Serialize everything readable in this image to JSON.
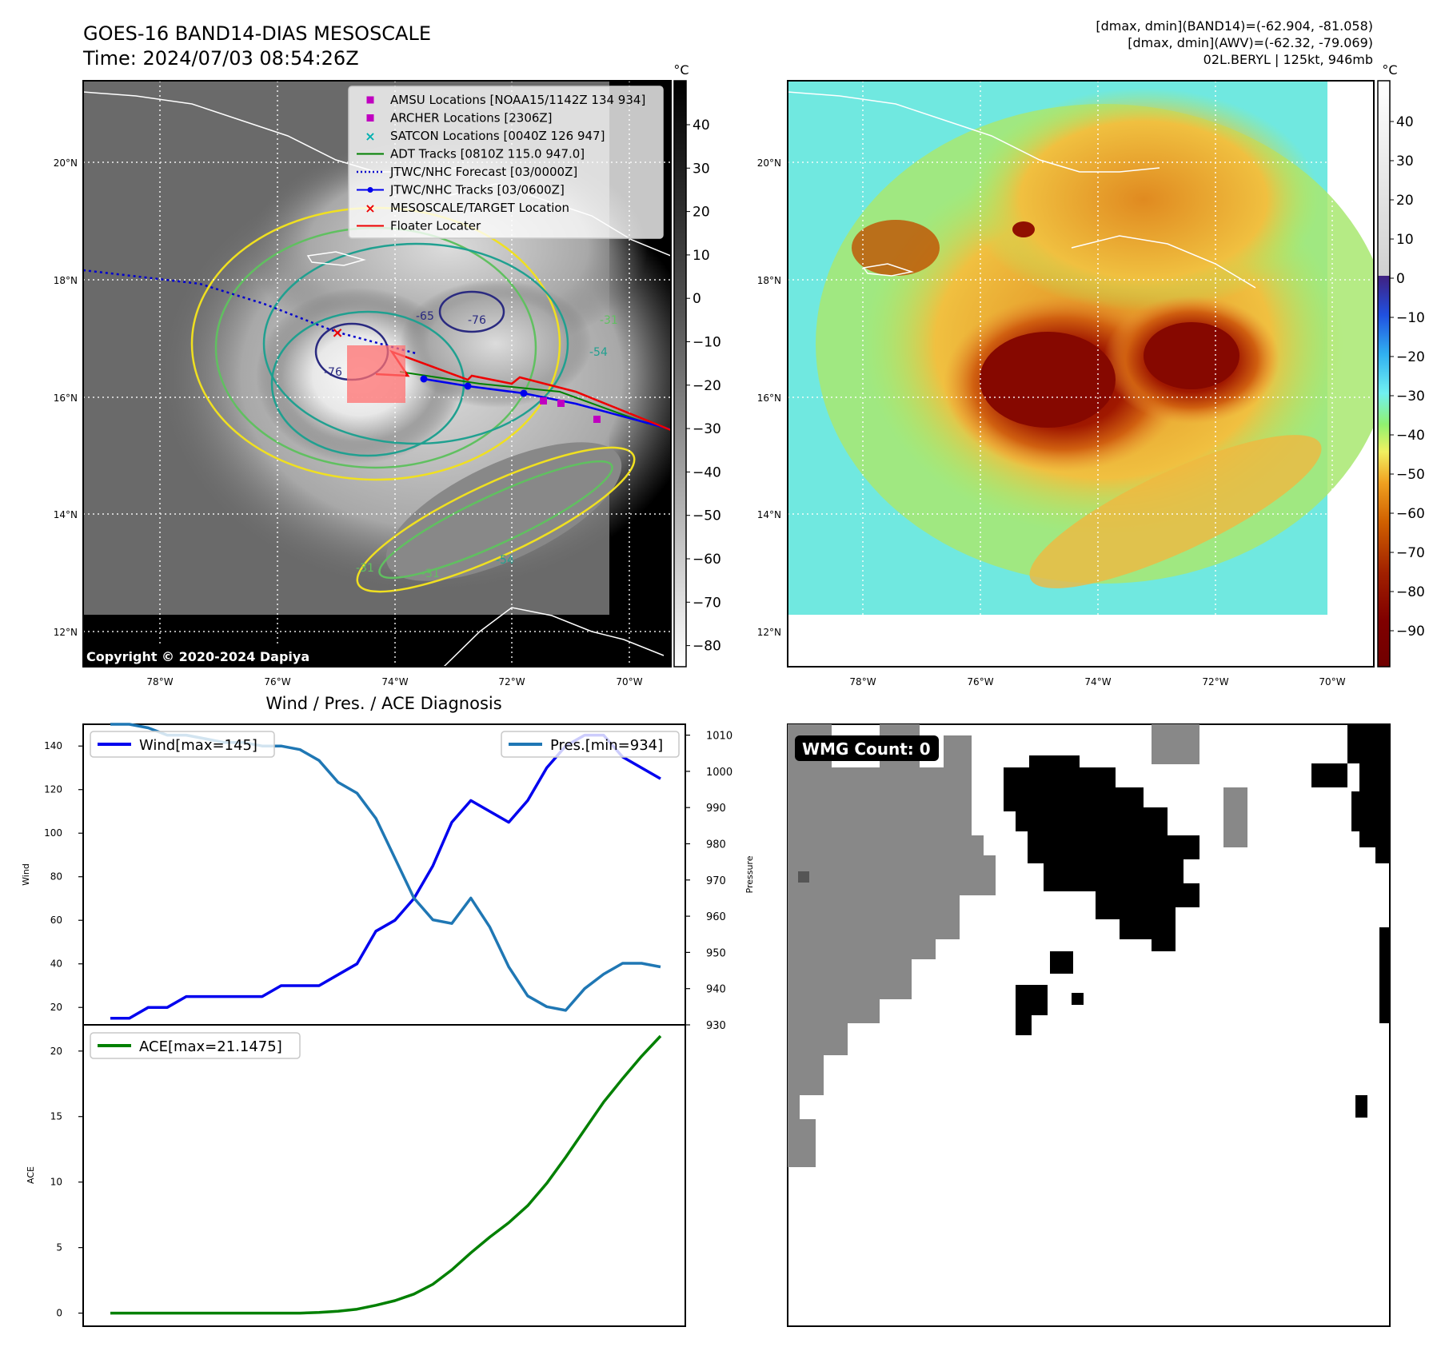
{
  "header": {
    "title_line1": "GOES-16 BAND14-DIAS MESOSCALE",
    "title_line2": "Time: 2024/07/03 08:54:26Z",
    "info_line1": "[dmax, dmin](BAND14)=(-62.904, -81.058)",
    "info_line2": "[dmax, dmin](AWV)=(-62.32, -79.069)",
    "info_line3": "02L.BERYL | 125kt, 946mb"
  },
  "map": {
    "lon_ticks": [
      "78°W",
      "76°W",
      "74°W",
      "72°W",
      "70°W"
    ],
    "lat_ticks": [
      "20°N",
      "18°N",
      "16°N",
      "14°N",
      "12°N"
    ],
    "copyright": "Copyright © 2020-2024 Dapiya",
    "contour_labels": [
      "-76",
      "-65",
      "-76",
      "-54",
      "-31",
      "-31",
      "-31",
      "-54"
    ],
    "legend": [
      {
        "label": "AMSU Locations [NOAA15/1142Z 134 934]",
        "color": "#c000c0",
        "marker": "square"
      },
      {
        "label": "ARCHER Locations [2306Z]",
        "color": "#c000c0",
        "marker": "square"
      },
      {
        "label": "SATCON Locations [0040Z 126 947]",
        "color": "#00b0b0",
        "marker": "x"
      },
      {
        "label": "ADT Tracks [0810Z 115.0 947.0]",
        "color": "#008000",
        "marker": "line"
      },
      {
        "label": "JTWC/NHC Forecast [03/0000Z]",
        "color": "#0000cc",
        "marker": "dotted"
      },
      {
        "label": "JTWC/NHC Tracks [03/0600Z]",
        "color": "#0000ee",
        "marker": "line-dot"
      },
      {
        "label": "MESOSCALE/TARGET Location",
        "color": "#ee0000",
        "marker": "x"
      },
      {
        "label": "Floater Locater",
        "color": "#ee0000",
        "marker": "line"
      }
    ]
  },
  "colorbars": {
    "unit": "°C",
    "left_ticks": [
      "40",
      "30",
      "20",
      "10",
      "0",
      "−10",
      "−20",
      "−30",
      "−40",
      "−50",
      "−60",
      "−70",
      "−80"
    ],
    "right_ticks": [
      "40",
      "30",
      "20",
      "10",
      "0",
      "−10",
      "−20",
      "−30",
      "−40",
      "−50",
      "−60",
      "−70",
      "−80",
      "−90"
    ]
  },
  "chart_data": [
    {
      "type": "line",
      "title": "Wind / Pres. / ACE Diagnosis",
      "ylabel": "Wind",
      "ylabel_right": "Pressure",
      "ylim": [
        12,
        150
      ],
      "ylim_right": [
        930,
        1013
      ],
      "yticks": [
        20,
        40,
        60,
        80,
        100,
        120,
        140
      ],
      "yticks_right": [
        930,
        940,
        950,
        960,
        970,
        980,
        990,
        1000,
        1010
      ],
      "legend_left": "Wind[max=145]",
      "legend_right": "Pres.[min=934]",
      "series": [
        {
          "name": "Wind[max=145]",
          "color": "#0000ee",
          "values": [
            15,
            15,
            20,
            20,
            25,
            25,
            25,
            25,
            25,
            30,
            30,
            30,
            35,
            40,
            55,
            60,
            70,
            85,
            105,
            115,
            110,
            105,
            115,
            130,
            140,
            145,
            145,
            135,
            130,
            125
          ]
        },
        {
          "name": "Pres.[min=934]",
          "color": "#1f77b4",
          "axis": "right",
          "values": [
            1013,
            1013,
            1012,
            1010,
            1010,
            1009,
            1008,
            1008,
            1007,
            1007,
            1006,
            1003,
            997,
            994,
            987,
            976,
            965,
            959,
            958,
            965,
            957,
            946,
            938,
            935,
            934,
            940,
            944,
            947,
            947,
            946
          ]
        }
      ]
    },
    {
      "type": "line",
      "ylabel": "ACE",
      "ylim": [
        -1,
        22
      ],
      "yticks": [
        0,
        5,
        10,
        15,
        20
      ],
      "legend_left": "ACE[max=21.1475]",
      "series": [
        {
          "name": "ACE[max=21.1475]",
          "color": "#008000",
          "values": [
            0,
            0,
            0,
            0,
            0,
            0,
            0,
            0,
            0,
            0,
            0,
            0.05,
            0.15,
            0.3,
            0.6,
            0.95,
            1.45,
            2.2,
            3.3,
            4.6,
            5.8,
            6.9,
            8.2,
            9.9,
            11.9,
            14.0,
            16.1,
            17.9,
            19.6,
            21.1475
          ]
        }
      ]
    }
  ],
  "wmg": {
    "label": "WMG Count: 0"
  }
}
